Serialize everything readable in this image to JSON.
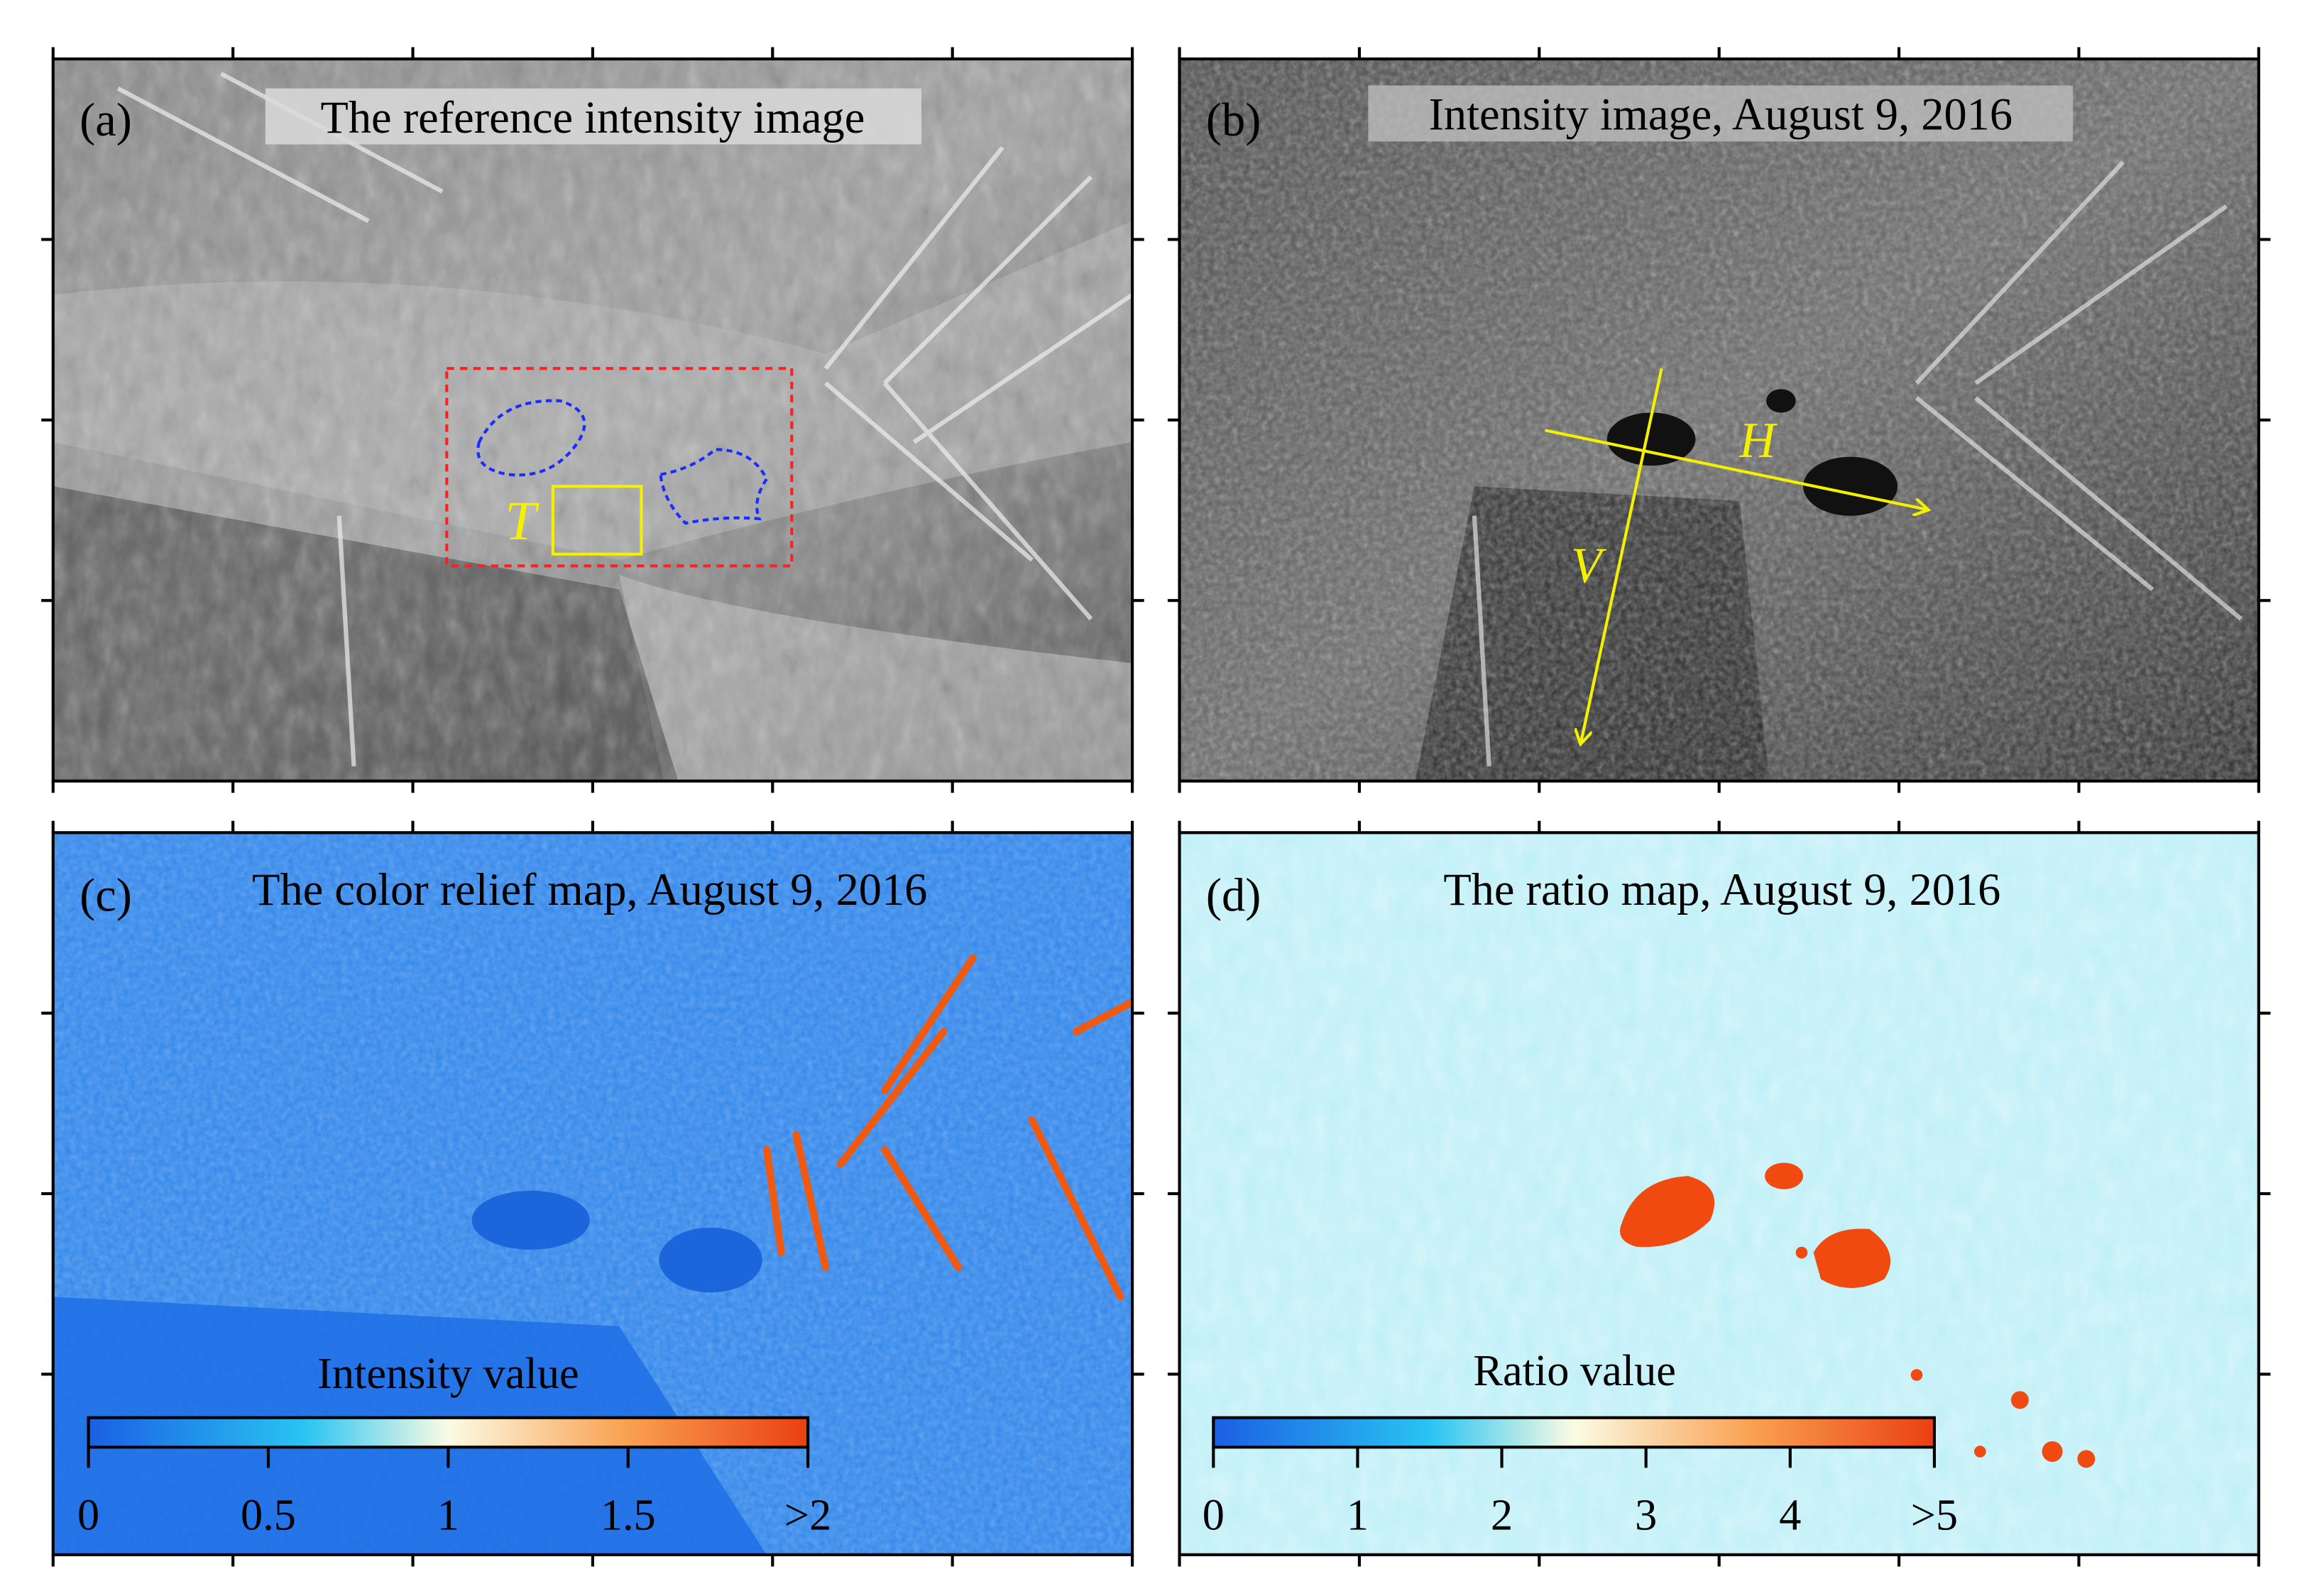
{
  "panels": [
    {
      "label": "(a)",
      "title": "The reference intensity image",
      "annotations": [
        "T"
      ]
    },
    {
      "label": "(b)",
      "title": "Intensity image, August 9, 2016",
      "annotations": [
        "H",
        "V"
      ]
    },
    {
      "label": "(c)",
      "title": "The color relief map, August 9, 2016",
      "colorbar": {
        "title": "Intensity value",
        "ticks": [
          0,
          0.5,
          1,
          1.5,
          {
            "value": 2,
            "label": ">2"
          }
        ]
      }
    },
    {
      "label": "(d)",
      "title": "The ratio map, August 9, 2016",
      "colorbar": {
        "title": "Ratio value",
        "ticks": [
          0,
          1,
          2,
          3,
          4,
          {
            "value": 5,
            "label": ">5"
          }
        ]
      }
    }
  ]
}
